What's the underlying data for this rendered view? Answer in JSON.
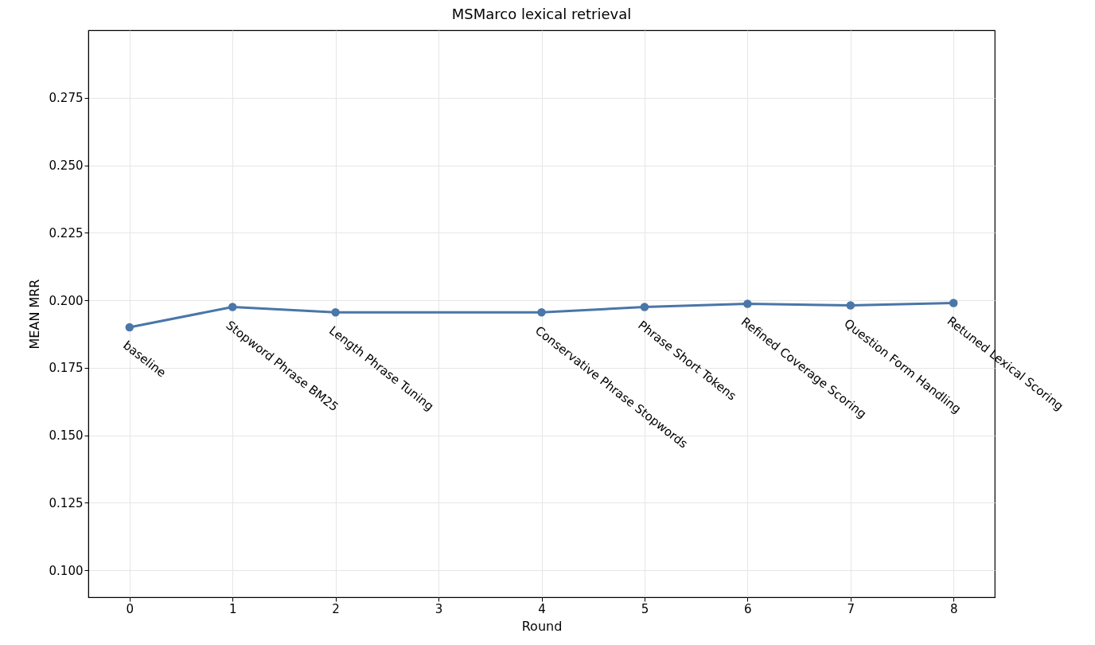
{
  "chart_data": {
    "type": "line",
    "title": "MSMarco lexical retrieval",
    "xlabel": "Round",
    "ylabel": "MEAN MRR",
    "x": [
      0,
      1,
      2,
      4,
      5,
      6,
      7,
      8
    ],
    "series": [
      {
        "color": "#4a76a8",
        "values": [
          0.19,
          0.1975,
          0.1955,
          0.1955,
          0.1975,
          0.1987,
          0.1981,
          0.199
        ]
      }
    ],
    "xlim": [
      -0.4,
      8.4
    ],
    "xticks": [
      0,
      1,
      2,
      3,
      4,
      5,
      6,
      7,
      8
    ],
    "ylim": [
      0.09,
      0.3
    ],
    "yticks": [
      {
        "value": 0.1,
        "label": "0.100"
      },
      0.125,
      {
        "value": 0.15,
        "label": "0.150"
      },
      0.175,
      {
        "value": 0.2,
        "label": "0.200"
      },
      0.225,
      {
        "value": 0.25,
        "label": "0.250"
      },
      0.275
    ],
    "grid": true,
    "marker": "circle",
    "line_style": "solid",
    "annotations": [
      {
        "text": "baseline",
        "x": 0,
        "y": 0.19
      },
      {
        "text": "Stopword Phrase BM25",
        "x": 1,
        "y": 0.1975
      },
      {
        "text": "Length Phrase Tuning",
        "x": 2,
        "y": 0.1955
      },
      {
        "text": "Conservative Phrase Stopwords",
        "x": 4,
        "y": 0.1955
      },
      {
        "text": "Phrase Short Tokens",
        "x": 5,
        "y": 0.1975
      },
      {
        "text": "Refined Coverage Scoring",
        "x": 6,
        "y": 0.1987
      },
      {
        "text": "Question Form Handling",
        "x": 7,
        "y": 0.1981
      },
      {
        "text": "Retuned Lexical Scoring",
        "x": 8,
        "y": 0.199
      }
    ]
  }
}
